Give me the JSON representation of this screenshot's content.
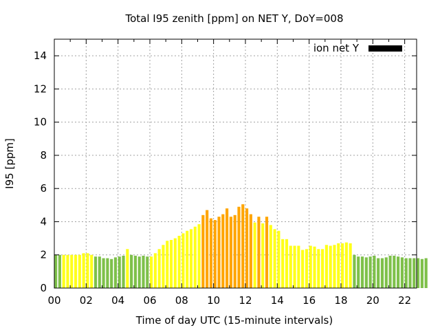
{
  "chart_data": {
    "type": "bar",
    "title": "Total I95 zenith [ppm] on NET Y, DoY=008",
    "xlabel": "Time of day UTC (15-minute intervals)",
    "ylabel": "I95 [ppm]",
    "xlim": [
      0,
      22.75
    ],
    "ylim": [
      0,
      15
    ],
    "x_ticks": [
      "00",
      "02",
      "04",
      "06",
      "08",
      "10",
      "12",
      "14",
      "16",
      "18",
      "20",
      "22"
    ],
    "y_ticks": [
      "0",
      "2",
      "4",
      "6",
      "8",
      "10",
      "12",
      "14"
    ],
    "grid": true,
    "legend": {
      "position": "top-right",
      "entries": [
        {
          "label": "ion net Y",
          "color": "#000000"
        }
      ]
    },
    "bar_width_hours": 0.18,
    "bins_per_hour": 4,
    "color_scale": [
      {
        "level": "low",
        "color": "#7ec04a"
      },
      {
        "level": "moderate",
        "color": "#ffff1a"
      },
      {
        "level": "high",
        "color": "#ffa500"
      }
    ],
    "values": [
      2.0,
      2.0,
      2.0,
      2.0,
      2.0,
      2.0,
      2.0,
      2.1,
      2.1,
      2.0,
      1.9,
      1.9,
      1.8,
      1.8,
      1.75,
      1.85,
      1.9,
      1.95,
      2.35,
      2.0,
      1.95,
      1.9,
      1.95,
      1.9,
      1.9,
      2.1,
      2.35,
      2.6,
      2.85,
      2.9,
      3.0,
      3.15,
      3.3,
      3.45,
      3.55,
      3.7,
      3.85,
      4.4,
      4.7,
      4.2,
      4.1,
      4.3,
      4.45,
      4.8,
      4.3,
      4.4,
      4.9,
      5.05,
      4.8,
      4.45,
      3.95,
      4.3,
      3.9,
      4.3,
      3.8,
      3.55,
      3.45,
      2.95,
      2.95,
      2.55,
      2.55,
      2.55,
      2.3,
      2.35,
      2.55,
      2.5,
      2.35,
      2.35,
      2.6,
      2.55,
      2.6,
      2.7,
      2.7,
      2.75,
      2.7,
      2.0,
      1.9,
      1.9,
      1.85,
      1.9,
      1.95,
      1.8,
      1.8,
      1.85,
      1.95,
      1.95,
      1.9,
      1.85,
      1.8,
      1.8,
      1.8,
      1.8,
      1.75,
      1.8
    ],
    "levels": [
      "low",
      "low",
      "moderate",
      "moderate",
      "moderate",
      "moderate",
      "moderate",
      "moderate",
      "moderate",
      "moderate",
      "low",
      "low",
      "low",
      "low",
      "low",
      "low",
      "low",
      "low",
      "moderate",
      "low",
      "low",
      "low",
      "low",
      "low",
      "moderate",
      "moderate",
      "moderate",
      "moderate",
      "moderate",
      "moderate",
      "moderate",
      "moderate",
      "moderate",
      "moderate",
      "moderate",
      "moderate",
      "moderate",
      "high",
      "high",
      "high",
      "high",
      "high",
      "high",
      "high",
      "high",
      "high",
      "high",
      "high",
      "high",
      "high",
      "moderate",
      "high",
      "moderate",
      "high",
      "moderate",
      "moderate",
      "moderate",
      "moderate",
      "moderate",
      "moderate",
      "moderate",
      "moderate",
      "moderate",
      "moderate",
      "moderate",
      "moderate",
      "moderate",
      "moderate",
      "moderate",
      "moderate",
      "moderate",
      "moderate",
      "moderate",
      "moderate",
      "moderate",
      "low",
      "low",
      "low",
      "low",
      "low",
      "low",
      "low",
      "low",
      "low",
      "low",
      "low",
      "low",
      "low",
      "low",
      "low",
      "low",
      "low",
      "low",
      "low"
    ]
  }
}
